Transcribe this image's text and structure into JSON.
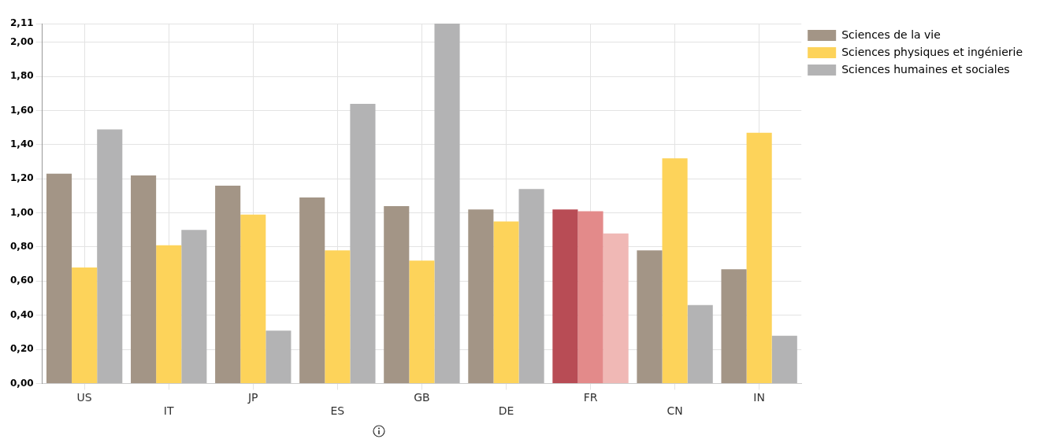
{
  "chart_data": {
    "type": "bar",
    "categories": [
      "US",
      "IT",
      "JP",
      "ES",
      "GB",
      "DE",
      "FR",
      "CN",
      "IN"
    ],
    "series": [
      {
        "name": "Sciences de la vie",
        "color": "#a39586",
        "colors": [
          "#a39586",
          "#a39586",
          "#a39586",
          "#a39586",
          "#a39586",
          "#a39586",
          "#b84c55",
          "#a39586",
          "#a39586"
        ],
        "values": [
          1.23,
          1.22,
          1.16,
          1.09,
          1.04,
          1.02,
          1.02,
          0.78,
          0.67
        ]
      },
      {
        "name": "Sciences physiques et ingénierie",
        "color": "#fdd35a",
        "colors": [
          "#fdd35a",
          "#fdd35a",
          "#fdd35a",
          "#fdd35a",
          "#fdd35a",
          "#fdd35a",
          "#e38a8a",
          "#fdd35a",
          "#fdd35a"
        ],
        "values": [
          0.68,
          0.81,
          0.99,
          0.78,
          0.72,
          0.95,
          1.01,
          1.32,
          1.47
        ]
      },
      {
        "name": "Sciences humaines et sociales",
        "color": "#b3b3b4",
        "colors": [
          "#b3b3b4",
          "#b3b3b4",
          "#b3b3b4",
          "#b3b3b4",
          "#b3b3b4",
          "#b3b3b4",
          "#f0b8b5",
          "#b3b3b4",
          "#b3b3b4"
        ],
        "values": [
          1.49,
          0.9,
          0.31,
          1.64,
          2.11,
          1.14,
          0.88,
          0.46,
          0.28
        ]
      }
    ],
    "ylim": [
      0,
      2.11
    ],
    "yticks": [
      {
        "value": 0,
        "label": "0,00"
      },
      {
        "value": 0.2,
        "label": "0,20"
      },
      {
        "value": 0.4,
        "label": "0,40"
      },
      {
        "value": 0.6,
        "label": "0,60"
      },
      {
        "value": 0.8,
        "label": "0,80"
      },
      {
        "value": 1,
        "label": "1,00"
      },
      {
        "value": 1.2,
        "label": "1,20"
      },
      {
        "value": 1.4,
        "label": "1,40"
      },
      {
        "value": 1.6,
        "label": "1,60"
      },
      {
        "value": 1.8,
        "label": "1,80"
      },
      {
        "value": 2,
        "label": "2,00"
      },
      {
        "value": 2.11,
        "label": "2,11"
      }
    ],
    "grid": true,
    "legend": "top right"
  }
}
